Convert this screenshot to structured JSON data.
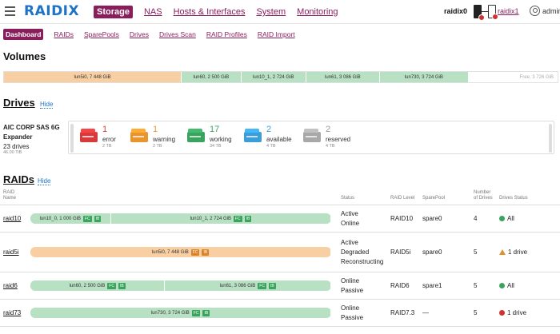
{
  "brand": {
    "logo": "RAIDIX",
    "accent": "#8a1e5c",
    "logo_color": "#1e73c8"
  },
  "main_nav": [
    {
      "label": "Storage",
      "active": true
    },
    {
      "label": "NAS"
    },
    {
      "label": "Hosts & Interfaces"
    },
    {
      "label": "System"
    },
    {
      "label": "Monitoring"
    }
  ],
  "nodes": {
    "node0": "raidix0",
    "node1": "raidix1"
  },
  "user": "admin",
  "sub_nav": [
    {
      "label": "Dashboard",
      "active": true
    },
    {
      "label": "RAIDs"
    },
    {
      "label": "SparePools"
    },
    {
      "label": "Drives"
    },
    {
      "label": "Drives Scan"
    },
    {
      "label": "RAID Profiles"
    },
    {
      "label": "RAID Import"
    }
  ],
  "volumes": {
    "title": "Volumes",
    "segments": [
      {
        "label": "lun5i0, 7 448 GiB",
        "size_gib": 7448,
        "color": "#f7cfa3"
      },
      {
        "label": "lun60, 2 500 GiB",
        "size_gib": 2500,
        "color": "#b8e0c2"
      },
      {
        "label": "lun10_1, 2 724 GiB",
        "size_gib": 2724,
        "color": "#b8e0c2"
      },
      {
        "label": "lun61, 3 086 GiB",
        "size_gib": 3086,
        "color": "#b8e0c2"
      },
      {
        "label": "lun730, 3 724 GiB",
        "size_gib": 3724,
        "color": "#b8e0c2"
      },
      {
        "label": "Free, 3 726 GiB",
        "size_gib": 3726,
        "color": "#ffffff"
      }
    ]
  },
  "drives": {
    "title": "Drives",
    "hide": "Hide",
    "enclosure": {
      "name": "AIC CORP SAS 6G Expander",
      "count": "23 drives",
      "size": "46.00 TiB"
    },
    "groups": [
      {
        "count": "1",
        "label": "error",
        "size": "2 TB",
        "color": "#d63a3a",
        "num_color": "#d63a3a"
      },
      {
        "count": "1",
        "label": "warning",
        "size": "2 TB",
        "color": "#e8952e",
        "num_color": "#e8952e"
      },
      {
        "count": "17",
        "label": "working",
        "size": "34 TB",
        "color": "#3aa35e",
        "num_color": "#3aa35e"
      },
      {
        "count": "2",
        "label": "available",
        "size": "4 TB",
        "color": "#3a9fd8",
        "num_color": "#3a9fd8"
      },
      {
        "count": "2",
        "label": "reserved",
        "size": "4 TB",
        "color": "#a8a8a8",
        "num_color": "#999999"
      }
    ]
  },
  "raids": {
    "title": "RAIDs",
    "hide": "Hide",
    "headers": {
      "name": "RAID Name",
      "status": "Status",
      "level": "RAID Level",
      "sparepool": "SparePool",
      "drives": "Number of Drives",
      "drive_status": "Drives Status"
    },
    "rows": [
      {
        "name": "raid10",
        "luns": [
          {
            "label": "lun10_0, 1 000 GiB",
            "size_gib": 1000,
            "color": "#b8e0c2"
          },
          {
            "label": "lun10_1, 2 724 GiB",
            "size_gib": 2724,
            "color": "#b8e0c2"
          }
        ],
        "status": "Active\nOnline",
        "level": "RAID10",
        "sparepool": "spare0",
        "drives": "4",
        "drive_status": "All",
        "drive_status_kind": "ok"
      },
      {
        "name": "raid5i",
        "luns": [
          {
            "label": "lun5i0, 7 448 GiB",
            "size_gib": 7448,
            "color": "#f7cfa3"
          }
        ],
        "status": "Active\nDegraded\nReconstructing",
        "level": "RAID5i",
        "sparepool": "spare0",
        "drives": "5",
        "drive_status": "1 drive",
        "drive_status_kind": "warn"
      },
      {
        "name": "raid6",
        "luns": [
          {
            "label": "lun60, 2 500 GiB",
            "size_gib": 2500,
            "color": "#b8e0c2"
          },
          {
            "label": "lun61, 3 086 GiB",
            "size_gib": 3086,
            "color": "#b8e0c2"
          }
        ],
        "status": "Online\nPassive",
        "level": "RAID6",
        "sparepool": "spare1",
        "drives": "5",
        "drive_status": "All",
        "drive_status_kind": "ok"
      },
      {
        "name": "raid73",
        "luns": [
          {
            "label": "lun730, 3 724 GiB",
            "size_gib": 3724,
            "color": "#b8e0c2"
          }
        ],
        "status": "Online\nPassive",
        "level": "RAID7.3",
        "sparepool": "—",
        "drives": "5",
        "drive_status": "1 drive",
        "drive_status_kind": "err"
      }
    ],
    "tags": {
      "fc": "FC",
      "ib": "IB"
    }
  }
}
